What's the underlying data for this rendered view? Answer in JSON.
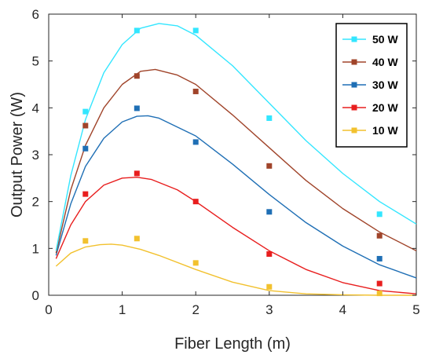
{
  "chart_data": {
    "type": "scatter",
    "xlabel": "Fiber Length (m)",
    "ylabel": "Output Power (W)",
    "xlim": [
      0,
      5
    ],
    "ylim": [
      0,
      6
    ],
    "xticks": [
      "0",
      "1",
      "2",
      "3",
      "4",
      "5"
    ],
    "yticks": [
      "0",
      "1",
      "2",
      "3",
      "4",
      "5",
      "6"
    ],
    "grid": false,
    "legend_position": "top-right",
    "series": [
      {
        "name": "50 W",
        "color": "#33e6ff",
        "points": [
          [
            0.5,
            3.92
          ],
          [
            1.2,
            5.65
          ],
          [
            2.0,
            5.65
          ],
          [
            3.0,
            3.78
          ],
          [
            4.5,
            1.73
          ]
        ],
        "fit": [
          [
            0.1,
            0.95
          ],
          [
            0.3,
            2.55
          ],
          [
            0.5,
            3.75
          ],
          [
            0.75,
            4.75
          ],
          [
            1.0,
            5.35
          ],
          [
            1.25,
            5.7
          ],
          [
            1.5,
            5.8
          ],
          [
            1.75,
            5.75
          ],
          [
            2.0,
            5.55
          ],
          [
            2.5,
            4.9
          ],
          [
            3.0,
            4.1
          ],
          [
            3.5,
            3.3
          ],
          [
            4.0,
            2.6
          ],
          [
            4.5,
            2.0
          ],
          [
            5.0,
            1.52
          ]
        ]
      },
      {
        "name": "40 W",
        "color": "#a0442a",
        "points": [
          [
            0.5,
            3.62
          ],
          [
            1.2,
            4.68
          ],
          [
            2.0,
            4.35
          ],
          [
            3.0,
            2.76
          ],
          [
            4.5,
            1.27
          ]
        ],
        "fit": [
          [
            0.1,
            0.9
          ],
          [
            0.3,
            2.25
          ],
          [
            0.5,
            3.2
          ],
          [
            0.75,
            4.0
          ],
          [
            1.0,
            4.5
          ],
          [
            1.25,
            4.78
          ],
          [
            1.45,
            4.82
          ],
          [
            1.75,
            4.7
          ],
          [
            2.0,
            4.5
          ],
          [
            2.5,
            3.85
          ],
          [
            3.0,
            3.15
          ],
          [
            3.5,
            2.45
          ],
          [
            4.0,
            1.85
          ],
          [
            4.5,
            1.35
          ],
          [
            5.0,
            0.95
          ]
        ]
      },
      {
        "name": "30 W",
        "color": "#1f6fb5",
        "points": [
          [
            0.5,
            3.13
          ],
          [
            1.2,
            3.99
          ],
          [
            2.0,
            3.27
          ],
          [
            3.0,
            1.78
          ],
          [
            4.5,
            0.78
          ]
        ],
        "fit": [
          [
            0.1,
            0.85
          ],
          [
            0.3,
            1.95
          ],
          [
            0.5,
            2.75
          ],
          [
            0.75,
            3.35
          ],
          [
            1.0,
            3.7
          ],
          [
            1.2,
            3.82
          ],
          [
            1.35,
            3.83
          ],
          [
            1.5,
            3.78
          ],
          [
            2.0,
            3.4
          ],
          [
            2.5,
            2.8
          ],
          [
            3.0,
            2.15
          ],
          [
            3.5,
            1.55
          ],
          [
            4.0,
            1.05
          ],
          [
            4.5,
            0.65
          ],
          [
            5.0,
            0.37
          ]
        ]
      },
      {
        "name": "20 W",
        "color": "#e81e1e",
        "points": [
          [
            0.5,
            2.16
          ],
          [
            1.2,
            2.6
          ],
          [
            2.0,
            2.0
          ],
          [
            3.0,
            0.88
          ],
          [
            4.5,
            0.25
          ]
        ],
        "fit": [
          [
            0.1,
            0.78
          ],
          [
            0.3,
            1.5
          ],
          [
            0.5,
            2.0
          ],
          [
            0.75,
            2.35
          ],
          [
            1.0,
            2.5
          ],
          [
            1.2,
            2.52
          ],
          [
            1.4,
            2.47
          ],
          [
            1.75,
            2.25
          ],
          [
            2.0,
            2.0
          ],
          [
            2.5,
            1.45
          ],
          [
            3.0,
            0.95
          ],
          [
            3.5,
            0.55
          ],
          [
            4.0,
            0.27
          ],
          [
            4.5,
            0.1
          ],
          [
            5.0,
            0.03
          ]
        ]
      },
      {
        "name": "10 W",
        "color": "#f2c12e",
        "points": [
          [
            0.5,
            1.16
          ],
          [
            1.2,
            1.21
          ],
          [
            2.0,
            0.69
          ],
          [
            3.0,
            0.18
          ],
          [
            4.5,
            0.04
          ]
        ],
        "fit": [
          [
            0.1,
            0.62
          ],
          [
            0.3,
            0.9
          ],
          [
            0.5,
            1.03
          ],
          [
            0.7,
            1.08
          ],
          [
            0.85,
            1.09
          ],
          [
            1.0,
            1.07
          ],
          [
            1.25,
            0.98
          ],
          [
            1.5,
            0.85
          ],
          [
            2.0,
            0.55
          ],
          [
            2.5,
            0.28
          ],
          [
            3.0,
            0.1
          ],
          [
            3.5,
            0.03
          ],
          [
            4.0,
            0.01
          ],
          [
            4.5,
            0.0
          ],
          [
            5.0,
            0.0
          ]
        ]
      }
    ]
  }
}
